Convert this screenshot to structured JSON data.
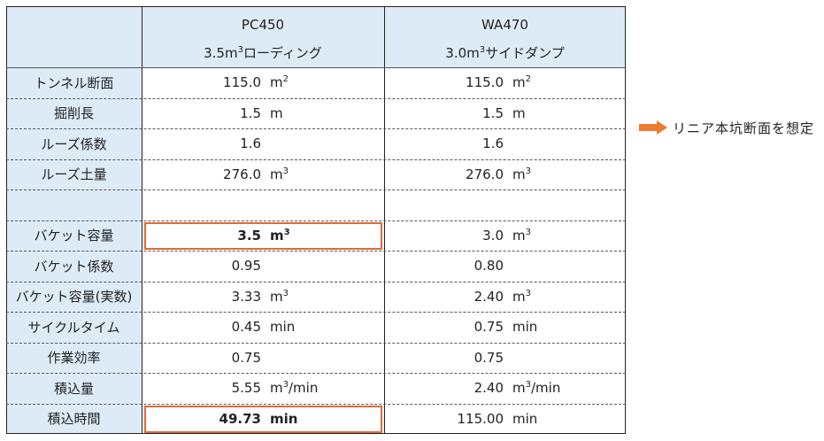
{
  "table": {
    "header": {
      "machines": [
        {
          "name": "PC450",
          "spec": {
            "base": "3.5m",
            "sup": "3",
            "rest": "ローディング"
          }
        },
        {
          "name": "WA470",
          "spec": {
            "base": "3.0m",
            "sup": "3",
            "rest": "サイドダンプ"
          }
        }
      ]
    },
    "rows": [
      {
        "label": "トンネル断面",
        "cells": [
          {
            "value": "115.0",
            "unit": {
              "base": "m",
              "sup": "2"
            }
          },
          {
            "value": "115.0",
            "unit": {
              "base": "m",
              "sup": "2"
            }
          }
        ]
      },
      {
        "label": "掘削長",
        "cells": [
          {
            "value": "1.5",
            "unit": {
              "base": "m"
            }
          },
          {
            "value": "1.5",
            "unit": {
              "base": "m"
            }
          }
        ]
      },
      {
        "label": "ルーズ係数",
        "cells": [
          {
            "value": "1.6"
          },
          {
            "value": "1.6"
          }
        ]
      },
      {
        "label": "ルーズ土量",
        "cells": [
          {
            "value": "276.0",
            "unit": {
              "base": "m",
              "sup": "3"
            }
          },
          {
            "value": "276.0",
            "unit": {
              "base": "m",
              "sup": "3"
            }
          }
        ]
      },
      {
        "label": null,
        "cells": null
      },
      {
        "label": "バケット容量",
        "cells": [
          {
            "value": "3.5",
            "unit": {
              "base": "m",
              "sup": "3"
            },
            "emphasis": true
          },
          {
            "value": "3.0",
            "unit": {
              "base": "m",
              "sup": "3"
            }
          }
        ]
      },
      {
        "label": "バケット係数",
        "cells": [
          {
            "value": "0.95"
          },
          {
            "value": "0.80"
          }
        ]
      },
      {
        "label": "バケット容量(実数)",
        "cells": [
          {
            "value": "3.33",
            "unit": {
              "base": "m",
              "sup": "3"
            }
          },
          {
            "value": "2.40",
            "unit": {
              "base": "m",
              "sup": "3"
            }
          }
        ]
      },
      {
        "label": "サイクルタイム",
        "cells": [
          {
            "value": "0.45",
            "unit": {
              "base": "min"
            }
          },
          {
            "value": "0.75",
            "unit": {
              "base": "min"
            }
          }
        ]
      },
      {
        "label": "作業効率",
        "cells": [
          {
            "value": "0.75"
          },
          {
            "value": "0.75"
          }
        ]
      },
      {
        "label": "積込量",
        "cells": [
          {
            "value": "5.55",
            "unit": {
              "base": "m",
              "sup": "3",
              "rest": "/min"
            }
          },
          {
            "value": "2.40",
            "unit": {
              "base": "m",
              "sup": "3",
              "rest": "/min"
            }
          }
        ]
      },
      {
        "label": "積込時間",
        "cells": [
          {
            "value": "49.73",
            "unit": {
              "base": "min"
            },
            "emphasis": true
          },
          {
            "value": "115.00",
            "unit": {
              "base": "min"
            }
          }
        ]
      }
    ],
    "note": "リニア本坑断面を想定"
  }
}
